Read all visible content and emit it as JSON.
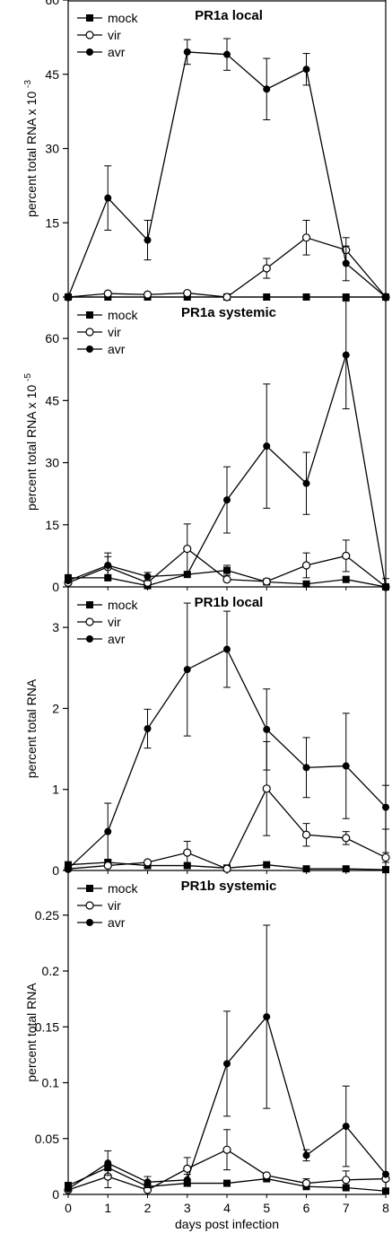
{
  "figure": {
    "xlabel": "days post infection",
    "xticks": [
      "0",
      "1",
      "2",
      "3",
      "4",
      "5",
      "6",
      "7",
      "8"
    ],
    "colors": {
      "line": "#000000",
      "marker_fill": "#000000",
      "open_marker_fill": "#ffffff"
    }
  },
  "chart_data": [
    {
      "type": "line",
      "title": "PR1a local",
      "ylabel_main": "percent total RNA x 10",
      "ylabel_exp": "-3",
      "ylim": [
        0,
        60
      ],
      "yticks": [
        0,
        15,
        30,
        45,
        60
      ],
      "legend_position": "top-left",
      "x": [
        0,
        1,
        2,
        3,
        4,
        5,
        6,
        7,
        8
      ],
      "series": [
        {
          "name": "mock",
          "marker": "filled-square",
          "values": [
            0,
            0,
            0,
            0,
            0,
            0,
            0,
            0,
            0
          ],
          "errors": [
            0,
            0,
            0,
            0,
            0,
            0,
            0,
            0,
            0
          ]
        },
        {
          "name": "vir",
          "marker": "open-circle",
          "values": [
            0,
            0.7,
            0.5,
            0.8,
            0,
            5.8,
            12,
            9.5,
            0
          ],
          "errors": [
            0,
            0,
            0,
            0,
            0,
            2,
            3.5,
            2.5,
            0
          ]
        },
        {
          "name": "avr",
          "marker": "filled-circle",
          "values": [
            0,
            20,
            11.5,
            49.5,
            49,
            42,
            46,
            6.8,
            0
          ],
          "errors": [
            0,
            6.5,
            4,
            2.5,
            3.2,
            6.2,
            3.2,
            3.5,
            0
          ]
        }
      ]
    },
    {
      "type": "line",
      "title": "PR1a systemic",
      "ylabel_main": "percent total RNA x 10",
      "ylabel_exp": "-5",
      "ylim": [
        0,
        70
      ],
      "yticks": [
        0,
        15,
        30,
        45,
        60
      ],
      "legend_position": "top-left",
      "x": [
        0,
        1,
        2,
        3,
        4,
        5,
        6,
        7,
        8
      ],
      "series": [
        {
          "name": "mock",
          "marker": "filled-square",
          "values": [
            2.2,
            2.2,
            0.3,
            3,
            4,
            1.2,
            0.7,
            1.8,
            0
          ],
          "errors": [
            0,
            0,
            0,
            0,
            1.2,
            0,
            0,
            0,
            0
          ]
        },
        {
          "name": "vir",
          "marker": "open-circle",
          "values": [
            1,
            4.8,
            1,
            9.2,
            1.8,
            1.3,
            5.2,
            7.5,
            0
          ],
          "errors": [
            0,
            2.5,
            1.5,
            6,
            0,
            0,
            3,
            3.8,
            0
          ]
        },
        {
          "name": "avr",
          "marker": "filled-circle",
          "values": [
            1.5,
            5.2,
            2.5,
            3,
            21,
            34,
            25,
            56,
            0
          ],
          "errors": [
            0,
            3,
            1,
            0,
            8,
            15,
            7.5,
            13,
            2
          ]
        }
      ]
    },
    {
      "type": "line",
      "title": "PR1b local",
      "ylabel_main": "percent total RNA",
      "ylabel_exp": "",
      "ylim": [
        0,
        3.5
      ],
      "yticks": [
        0,
        1,
        2,
        3
      ],
      "legend_position": "top-left",
      "x": [
        0,
        1,
        2,
        3,
        4,
        5,
        6,
        7,
        8
      ],
      "series": [
        {
          "name": "mock",
          "marker": "filled-square",
          "values": [
            0.07,
            0.1,
            0.06,
            0.06,
            0.03,
            0.07,
            0.02,
            0.02,
            0.01
          ],
          "errors": [
            0,
            0,
            0,
            0,
            0,
            0,
            0,
            0,
            0
          ]
        },
        {
          "name": "vir",
          "marker": "open-circle",
          "values": [
            0.02,
            0.06,
            0.1,
            0.22,
            0.02,
            1.01,
            0.44,
            0.4,
            0.16
          ],
          "errors": [
            0,
            0,
            0,
            0.14,
            0,
            0.58,
            0.14,
            0.08,
            0.06
          ]
        },
        {
          "name": "avr",
          "marker": "filled-circle",
          "values": [
            0.02,
            0.48,
            1.75,
            2.48,
            2.73,
            1.74,
            1.27,
            1.29,
            0.78
          ],
          "errors": [
            0,
            0.35,
            0.24,
            0.82,
            0.47,
            0.5,
            0.37,
            0.65,
            0.27
          ]
        }
      ]
    },
    {
      "type": "line",
      "title": "PR1b systemic",
      "ylabel_main": "percent total RNA",
      "ylabel_exp": "",
      "ylim": [
        0,
        0.29
      ],
      "yticks": [
        0,
        0.05,
        0.1,
        0.15,
        0.2,
        0.25
      ],
      "ytick_labels": [
        "0",
        "0.05",
        "0.1",
        "0.15",
        "0.2",
        "0.25"
      ],
      "legend_position": "top-left",
      "x": [
        0,
        1,
        2,
        3,
        4,
        5,
        6,
        7,
        8
      ],
      "series": [
        {
          "name": "mock",
          "marker": "filled-square",
          "values": [
            0.008,
            0.024,
            0.007,
            0.01,
            0.01,
            0.014,
            0.007,
            0.006,
            0.003
          ],
          "errors": [
            0,
            0,
            0,
            0,
            0,
            0,
            0,
            0,
            0
          ]
        },
        {
          "name": "vir",
          "marker": "open-circle",
          "values": [
            0.004,
            0.016,
            0.004,
            0.023,
            0.04,
            0.017,
            0.01,
            0.013,
            0.014
          ],
          "errors": [
            0,
            0.01,
            0.004,
            0.01,
            0.018,
            0,
            0.004,
            0.008,
            0
          ]
        },
        {
          "name": "avr",
          "marker": "filled-circle",
          "values": [
            0.005,
            0.028,
            0.011,
            0.013,
            0.117,
            0.159,
            0.035,
            0.061,
            0.018
          ],
          "errors": [
            0,
            0.011,
            0.005,
            0.005,
            0.047,
            0.082,
            0.005,
            0.036,
            0
          ]
        }
      ]
    }
  ]
}
